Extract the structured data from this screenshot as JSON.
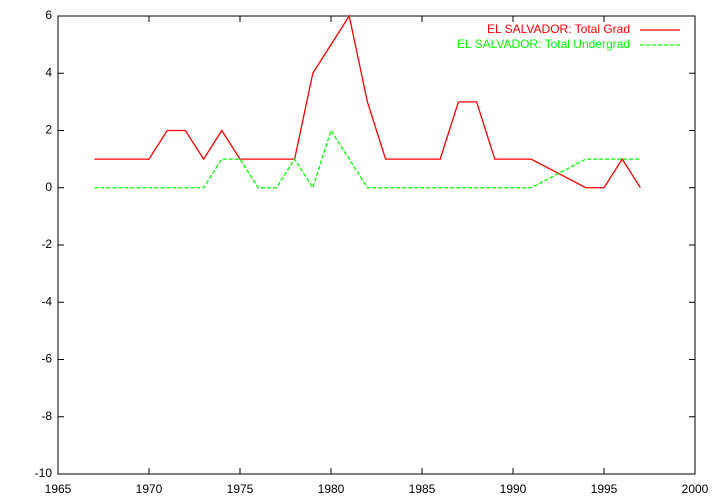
{
  "chart_data": {
    "type": "line",
    "x": [
      1967,
      1968,
      1969,
      1970,
      1971,
      1972,
      1973,
      1974,
      1975,
      1976,
      1977,
      1978,
      1979,
      1980,
      1981,
      1982,
      1983,
      1984,
      1985,
      1986,
      1987,
      1988,
      1989,
      1990,
      1991,
      1994,
      1995,
      1996,
      1997
    ],
    "series": [
      {
        "name": "EL SALVADOR: Total Grad",
        "color": "#ff0000",
        "dash": false,
        "values": [
          1,
          1,
          1,
          1,
          2,
          2,
          1,
          2,
          1,
          1,
          1,
          1,
          4,
          5,
          6,
          3,
          1,
          1,
          1,
          1,
          3,
          3,
          1,
          1,
          1,
          0,
          0,
          1,
          0
        ]
      },
      {
        "name": "EL SALVADOR: Total Undergrad",
        "color": "#00ff00",
        "dash": true,
        "values": [
          0,
          0,
          0,
          0,
          0,
          0,
          0,
          1,
          1,
          0,
          0,
          1,
          0,
          2,
          1,
          0,
          0,
          0,
          0,
          0,
          0,
          0,
          0,
          0,
          0,
          1,
          1,
          1,
          1
        ]
      }
    ],
    "xlim": [
      1965,
      2000
    ],
    "xticks": [
      1965,
      1970,
      1975,
      1980,
      1985,
      1990,
      1995,
      2000
    ],
    "ylim": [
      -10,
      6
    ],
    "yticks": [
      -10,
      -8,
      -6,
      -4,
      -2,
      0,
      2,
      4,
      6
    ],
    "legend": "top-right"
  }
}
